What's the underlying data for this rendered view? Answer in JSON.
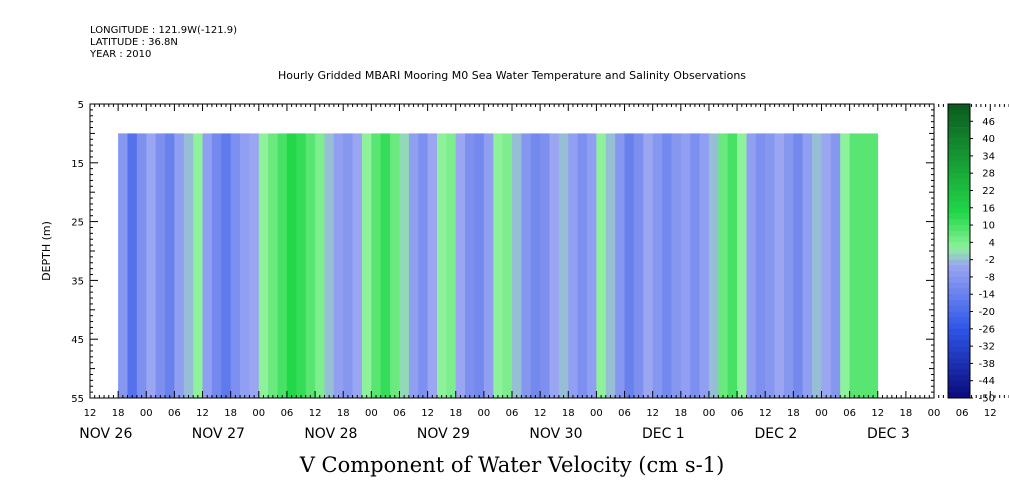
{
  "header": {
    "longitude": "LONGITUDE : 121.9W(-121.9)",
    "latitude": "LATITUDE : 36.8N",
    "year": "YEAR : 2010"
  },
  "chart_data": {
    "type": "heatmap",
    "title": "Hourly Gridded MBARI Mooring M0 Sea Water Temperature and Salinity Observations",
    "xlabel": "V Component of Water Velocity (cm s-1)",
    "ylabel": "DEPTH (m)",
    "ylim": [
      5,
      55
    ],
    "y_inverted": true,
    "yticks": [
      5,
      15,
      25,
      35,
      45,
      55
    ],
    "x_hour_ticks": [
      "12",
      "18",
      "00",
      "06",
      "12",
      "18",
      "00",
      "06",
      "12",
      "18",
      "00",
      "06",
      "12",
      "18",
      "00",
      "06",
      "12",
      "18",
      "00",
      "06",
      "12",
      "18",
      "00",
      "06",
      "12",
      "18",
      "00",
      "06",
      "12",
      "18",
      "00",
      "06",
      "12",
      "18",
      "00",
      "06",
      "12"
    ],
    "x_date_labels": [
      {
        "label": "NOV 26",
        "hours_from_nov26_00": 0
      },
      {
        "label": "NOV 27",
        "hours_from_nov26_00": 24
      },
      {
        "label": "NOV 28",
        "hours_from_nov26_00": 48
      },
      {
        "label": "NOV 29",
        "hours_from_nov26_00": 72
      },
      {
        "label": "NOV 30",
        "hours_from_nov26_00": 96
      },
      {
        "label": "DEC   1",
        "hours_from_nov26_00": 120
      },
      {
        "label": "DEC   2",
        "hours_from_nov26_00": 144
      },
      {
        "label": "DEC   3",
        "hours_from_nov26_00": 168
      }
    ],
    "data_range": {
      "depth_min": 10,
      "depth_max": 55,
      "time_start": "NOV 26 18",
      "time_end": "DEC 3 12"
    },
    "colorbar_labels": [
      "46",
      "40",
      "34",
      "28",
      "22",
      "16",
      "10",
      "4",
      "-2",
      "-8",
      "-14",
      "-20",
      "-26",
      "-32",
      "-38",
      "-44",
      "-50"
    ],
    "colorbar_range": [
      -50,
      52
    ],
    "color_scale": {
      "low": "#0a0a7a",
      "mid_low": "#2e55e8",
      "neutral": "#9aa6f2",
      "mid_high": "#8ef29a",
      "high": "#22d84a",
      "top": "#0a5a1e"
    },
    "velocity_by_time": [
      {
        "t": 18,
        "v": -8
      },
      {
        "t": 20,
        "v": -18
      },
      {
        "t": 22,
        "v": -10
      },
      {
        "t": 24,
        "v": -4
      },
      {
        "t": 26,
        "v": -10
      },
      {
        "t": 28,
        "v": -14
      },
      {
        "t": 30,
        "v": -6
      },
      {
        "t": 32,
        "v": -2
      },
      {
        "t": 34,
        "v": 2
      },
      {
        "t": 36,
        "v": -6
      },
      {
        "t": 38,
        "v": -12
      },
      {
        "t": 40,
        "v": -16
      },
      {
        "t": 42,
        "v": -10
      },
      {
        "t": 44,
        "v": -6
      },
      {
        "t": 46,
        "v": -4
      },
      {
        "t": 48,
        "v": 2
      },
      {
        "t": 50,
        "v": 6
      },
      {
        "t": 52,
        "v": 10
      },
      {
        "t": 54,
        "v": 14
      },
      {
        "t": 56,
        "v": 12
      },
      {
        "t": 58,
        "v": 8
      },
      {
        "t": 60,
        "v": 4
      },
      {
        "t": 62,
        "v": -2
      },
      {
        "t": 64,
        "v": -6
      },
      {
        "t": 66,
        "v": -8
      },
      {
        "t": 68,
        "v": -4
      },
      {
        "t": 70,
        "v": 2
      },
      {
        "t": 72,
        "v": 8
      },
      {
        "t": 74,
        "v": 12
      },
      {
        "t": 76,
        "v": 6
      },
      {
        "t": 78,
        "v": 0
      },
      {
        "t": 80,
        "v": -6
      },
      {
        "t": 82,
        "v": -10
      },
      {
        "t": 84,
        "v": -4
      },
      {
        "t": 86,
        "v": 2
      },
      {
        "t": 88,
        "v": 4
      },
      {
        "t": 90,
        "v": -4
      },
      {
        "t": 92,
        "v": -10
      },
      {
        "t": 94,
        "v": -12
      },
      {
        "t": 96,
        "v": -6
      },
      {
        "t": 98,
        "v": 2
      },
      {
        "t": 100,
        "v": 4
      },
      {
        "t": 102,
        "v": -2
      },
      {
        "t": 104,
        "v": -8
      },
      {
        "t": 106,
        "v": -12
      },
      {
        "t": 108,
        "v": -10
      },
      {
        "t": 110,
        "v": -4
      },
      {
        "t": 112,
        "v": -2
      },
      {
        "t": 114,
        "v": -6
      },
      {
        "t": 116,
        "v": -10
      },
      {
        "t": 118,
        "v": -6
      },
      {
        "t": 120,
        "v": 2
      },
      {
        "t": 122,
        "v": -2
      },
      {
        "t": 124,
        "v": -8
      },
      {
        "t": 126,
        "v": -14
      },
      {
        "t": 128,
        "v": -10
      },
      {
        "t": 130,
        "v": -4
      },
      {
        "t": 132,
        "v": -8
      },
      {
        "t": 134,
        "v": -12
      },
      {
        "t": 136,
        "v": -8
      },
      {
        "t": 138,
        "v": -6
      },
      {
        "t": 140,
        "v": -10
      },
      {
        "t": 142,
        "v": -6
      },
      {
        "t": 144,
        "v": -2
      },
      {
        "t": 146,
        "v": 6
      },
      {
        "t": 148,
        "v": 10
      },
      {
        "t": 150,
        "v": 2
      },
      {
        "t": 152,
        "v": -6
      },
      {
        "t": 154,
        "v": -10
      },
      {
        "t": 156,
        "v": -8
      },
      {
        "t": 158,
        "v": -4
      },
      {
        "t": 160,
        "v": -8
      },
      {
        "t": 162,
        "v": -12
      },
      {
        "t": 164,
        "v": -6
      },
      {
        "t": 166,
        "v": -2
      },
      {
        "t": 168,
        "v": -4
      },
      {
        "t": 170,
        "v": -8
      },
      {
        "t": 172,
        "v": 2
      },
      {
        "t": 174,
        "v": 8
      },
      {
        "t": 180,
        "v": 4
      }
    ]
  }
}
